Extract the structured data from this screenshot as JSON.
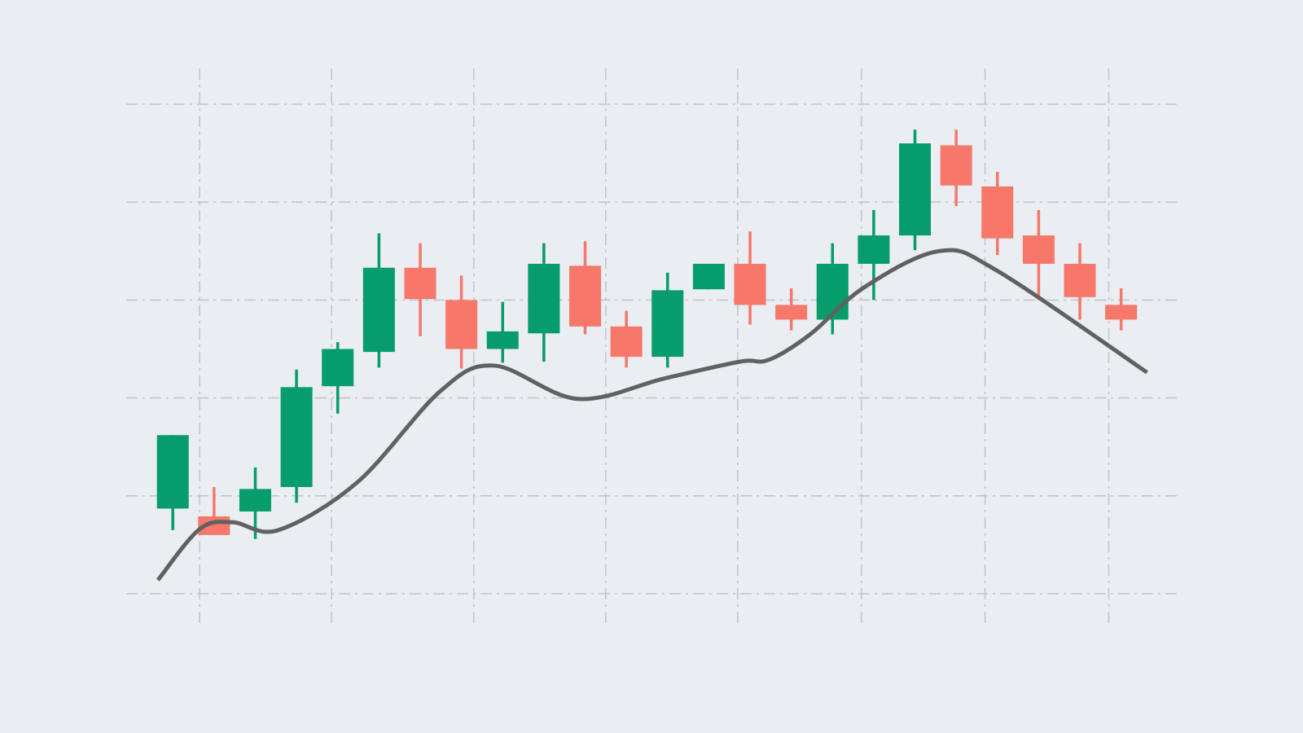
{
  "chart_data": {
    "type": "candlestick",
    "x": [
      0,
      1,
      2,
      3,
      4,
      5,
      6,
      7,
      8,
      9,
      10,
      11,
      12,
      13,
      14,
      15,
      16,
      17,
      18,
      19,
      20,
      21,
      22,
      23
    ],
    "open": [
      8.7,
      7.9,
      8.4,
      10.9,
      21.2,
      24.7,
      33.3,
      30.0,
      25.0,
      26.6,
      33.5,
      27.3,
      24.2,
      31.1,
      33.7,
      29.5,
      28.0,
      33.7,
      36.6,
      45.8,
      41.6,
      36.6,
      33.7,
      29.5
    ],
    "high": [
      16.2,
      10.9,
      12.9,
      22.9,
      25.7,
      36.8,
      35.8,
      32.5,
      29.8,
      35.8,
      36.0,
      28.9,
      32.8,
      33.7,
      37.0,
      31.2,
      35.8,
      39.2,
      47.4,
      47.4,
      43.1,
      39.2,
      35.8,
      31.2
    ],
    "low": [
      6.5,
      6.0,
      5.6,
      9.3,
      18.4,
      23.1,
      26.3,
      23.0,
      23.6,
      23.7,
      26.5,
      23.1,
      23.1,
      31.1,
      27.5,
      26.9,
      26.5,
      30.0,
      35.1,
      39.6,
      34.6,
      30.0,
      28.0,
      26.9
    ],
    "close": [
      16.2,
      6.0,
      10.7,
      21.1,
      25.0,
      33.3,
      30.1,
      25.0,
      26.8,
      33.7,
      27.3,
      24.2,
      31.0,
      33.7,
      29.5,
      28.0,
      33.7,
      36.6,
      46.0,
      41.7,
      36.3,
      33.7,
      30.3,
      28.0
    ],
    "up_color": "#069c6c",
    "down_color": "#f7776a",
    "line": {
      "x": [
        -0.36,
        0.65,
        1.45,
        2.56,
        4.48,
        6.49,
        7.8,
        9.82,
        11.93,
        13.75,
        14.46,
        15.46,
        16.77,
        18.59,
        19.99,
        23.63
      ],
      "values": [
        1.4,
        6.6,
        7.3,
        6.5,
        11.4,
        20.7,
        23.3,
        19.9,
        22.0,
        23.7,
        23.9,
        26.5,
        31.3,
        35.0,
        33.0,
        22.6
      ],
      "color": "#616161"
    },
    "xlim": [
      -1.13,
      24.35
    ],
    "ylim": [
      0,
      50
    ],
    "xticks": [
      0.65,
      3.85,
      7.3,
      10.5,
      13.7,
      16.7,
      19.7,
      22.7
    ],
    "yticks": [
      0,
      10,
      20,
      30,
      40,
      50
    ],
    "grid": true
  }
}
